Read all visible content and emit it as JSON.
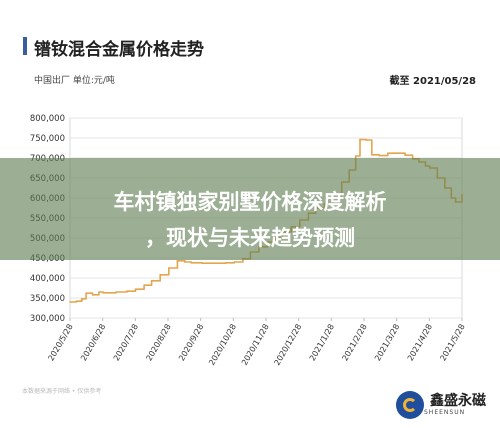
{
  "header": {
    "title": "镨钕混合金属价格走势",
    "subtitle": "中国出厂  单位:元/吨",
    "date": "截至 2021/05/28"
  },
  "footer": {
    "note": "本数据来源于网络 • 仅供参考",
    "brand_name": "鑫盛永磁",
    "brand_en": "SHEENSUN"
  },
  "overlay": {
    "line1": "车村镇独家别墅价格深度解析",
    "line2": "，现状与未来趋势预测"
  },
  "colors": {
    "line": "#e3a54d",
    "accent": "#3a5d9c",
    "grid": "#e6e6e6",
    "axis_text": "#333333"
  },
  "chart_data": {
    "type": "line",
    "ylim": [
      300000,
      800000
    ],
    "yticks": [
      300000,
      350000,
      400000,
      450000,
      500000,
      550000,
      600000,
      650000,
      700000,
      750000,
      800000
    ],
    "ytick_labels": [
      "300,000",
      "350,000",
      "400,000",
      "450,000",
      "500,000",
      "550,000",
      "600,000",
      "650,000",
      "700,000",
      "750,000",
      "800,000"
    ],
    "xticks": [
      "2020/5/28",
      "2020/6/28",
      "2020/7/28",
      "2020/8/28",
      "2020/9/28",
      "2020/10/28",
      "2020/11/28",
      "2020/12/28",
      "2021/1/28",
      "2021/2/28",
      "2021/3/28",
      "2021/4/28",
      "2021/5/28"
    ],
    "grid": true,
    "series": [
      {
        "x": [
          "2020/5/28",
          "2020/6/3",
          "2020/6/8",
          "2020/6/12",
          "2020/6/18",
          "2020/6/24",
          "2020/6/28",
          "2020/7/10",
          "2020/7/20",
          "2020/7/28",
          "2020/8/5",
          "2020/8/12",
          "2020/8/20",
          "2020/8/28",
          "2020/9/5",
          "2020/9/12",
          "2020/9/18",
          "2020/9/28",
          "2020/10/10",
          "2020/10/20",
          "2020/10/28",
          "2020/11/5",
          "2020/11/12",
          "2020/11/20",
          "2020/11/28",
          "2020/12/5",
          "2020/12/12",
          "2020/12/20",
          "2020/12/28",
          "2021/1/5",
          "2021/1/12",
          "2021/1/20",
          "2021/1/28",
          "2021/2/5",
          "2021/2/12",
          "2021/2/18",
          "2021/2/22",
          "2021/2/28",
          "2021/3/5",
          "2021/3/12",
          "2021/3/20",
          "2021/3/28",
          "2021/4/5",
          "2021/4/12",
          "2021/4/18",
          "2021/4/24",
          "2021/4/28",
          "2021/5/5",
          "2021/5/12",
          "2021/5/18",
          "2021/5/22",
          "2021/5/28"
        ],
        "values": [
          340000,
          342000,
          348000,
          362000,
          358000,
          365000,
          363000,
          365000,
          367000,
          372000,
          382000,
          393000,
          408000,
          425000,
          443000,
          440000,
          438000,
          437000,
          437000,
          438000,
          440000,
          448000,
          465000,
          478000,
          490000,
          500000,
          515000,
          528000,
          545000,
          562000,
          575000,
          585000,
          602000,
          640000,
          670000,
          705000,
          746000,
          745000,
          708000,
          706000,
          712000,
          712000,
          707000,
          698000,
          690000,
          680000,
          675000,
          650000,
          625000,
          600000,
          590000,
          608000
        ]
      }
    ]
  }
}
